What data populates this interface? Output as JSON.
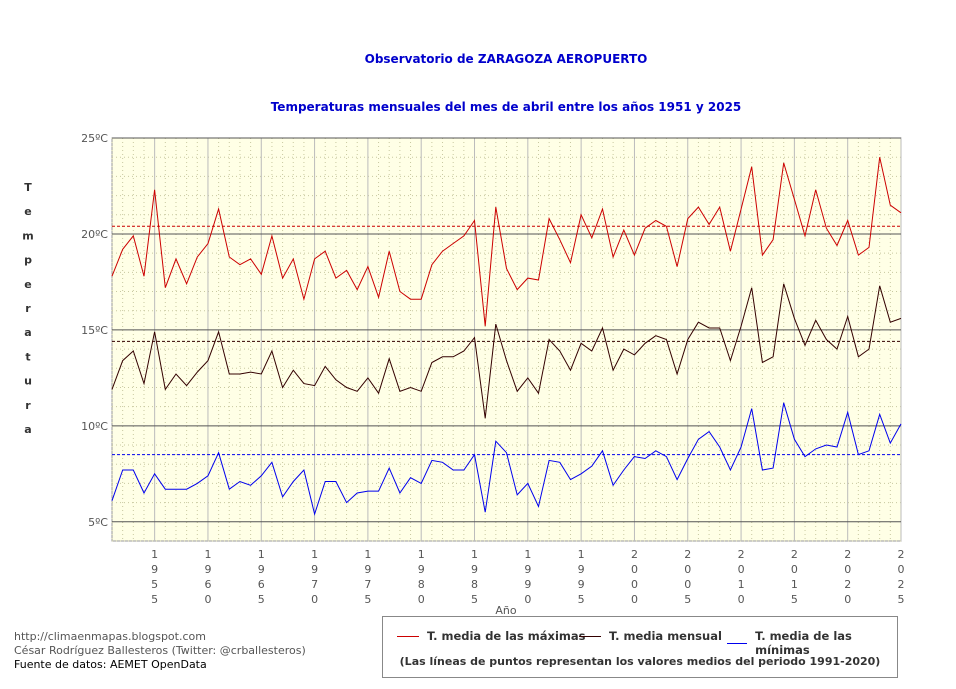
{
  "title": "Observatorio de ZARAGOZA AEROPUERTO",
  "subtitle": "Temperaturas mensuales del mes de abril entre los años 1951 y 2025",
  "credits": {
    "blog": "http://climaenmapas.blogspot.com",
    "author": "César Rodríguez Ballesteros (Twitter: @crballesteros)",
    "source": "Fuente de datos: AEMET OpenData"
  },
  "legend": {
    "note": "(Las líneas de puntos representan los valores medios del periodo 1991-2020)"
  },
  "colors": {
    "background": "#ffffe6",
    "max": "#cc0000",
    "mean": "#330000",
    "min": "#0000ee",
    "title": "#0000cc"
  },
  "chart_data": {
    "type": "line",
    "xlabel": "Año",
    "ylabel": "Temperatura",
    "ylim": [
      4,
      25
    ],
    "y_ticks": [
      5,
      10,
      15,
      20,
      25
    ],
    "y_tick_labels": [
      "5ºC",
      "10ºC",
      "15ºC",
      "20ºC",
      "25ºC"
    ],
    "x_ticks": [
      1955,
      1960,
      1965,
      1970,
      1975,
      1980,
      1985,
      1990,
      1995,
      2000,
      2005,
      2010,
      2015,
      2020,
      2025
    ],
    "x_tick_labels": [
      "1955",
      "1960",
      "1965",
      "1970",
      "1975",
      "1980",
      "1985",
      "1990",
      "1995",
      "2000",
      "2005",
      "2010",
      "2015",
      "2020",
      "2025"
    ],
    "x": [
      1951,
      1952,
      1953,
      1954,
      1955,
      1956,
      1957,
      1958,
      1959,
      1960,
      1961,
      1962,
      1963,
      1964,
      1965,
      1966,
      1967,
      1968,
      1969,
      1970,
      1971,
      1972,
      1973,
      1974,
      1975,
      1976,
      1977,
      1978,
      1979,
      1980,
      1981,
      1982,
      1983,
      1984,
      1985,
      1986,
      1987,
      1988,
      1989,
      1990,
      1991,
      1992,
      1993,
      1994,
      1995,
      1996,
      1997,
      1998,
      1999,
      2000,
      2001,
      2002,
      2003,
      2004,
      2005,
      2006,
      2007,
      2008,
      2009,
      2010,
      2011,
      2012,
      2013,
      2014,
      2015,
      2016,
      2017,
      2018,
      2019,
      2020,
      2021,
      2022,
      2023,
      2024,
      2025
    ],
    "grid": true,
    "series": [
      {
        "name": "T. media de las máximas",
        "color": "#cc0000",
        "reference_1991_2020": 20.4,
        "values": [
          17.8,
          19.2,
          19.9,
          17.8,
          22.3,
          17.2,
          18.7,
          17.4,
          18.8,
          19.5,
          21.3,
          18.8,
          18.4,
          18.7,
          17.9,
          19.9,
          17.7,
          18.7,
          16.6,
          18.7,
          19.1,
          17.7,
          18.1,
          17.1,
          18.3,
          16.7,
          19.1,
          17.0,
          16.6,
          16.6,
          18.4,
          19.1,
          19.5,
          19.9,
          20.7,
          15.2,
          21.4,
          18.2,
          17.1,
          17.7,
          17.6,
          20.8,
          19.7,
          18.5,
          21.0,
          19.8,
          21.3,
          18.8,
          20.2,
          18.9,
          20.3,
          20.7,
          20.4,
          18.3,
          20.8,
          21.4,
          20.5,
          21.4,
          19.1,
          21.3,
          23.5,
          18.9,
          19.7,
          23.7,
          21.8,
          19.9,
          22.3,
          20.3,
          19.4,
          20.7,
          18.9,
          19.3,
          24.0,
          21.5,
          21.1
        ]
      },
      {
        "name": "T. media mensual",
        "color": "#330000",
        "reference_1991_2020": 14.4,
        "values": [
          11.9,
          13.4,
          13.9,
          12.2,
          14.9,
          11.9,
          12.7,
          12.1,
          12.8,
          13.4,
          14.9,
          12.7,
          12.7,
          12.8,
          12.7,
          13.9,
          12.0,
          12.9,
          12.2,
          12.1,
          13.1,
          12.4,
          12.0,
          11.8,
          12.5,
          11.7,
          13.5,
          11.8,
          12.0,
          11.8,
          13.3,
          13.6,
          13.6,
          13.9,
          14.6,
          10.4,
          15.3,
          13.4,
          11.8,
          12.5,
          11.7,
          14.5,
          13.9,
          12.9,
          14.3,
          13.9,
          15.1,
          12.9,
          14.0,
          13.7,
          14.3,
          14.7,
          14.5,
          12.7,
          14.5,
          15.4,
          15.1,
          15.1,
          13.4,
          15.2,
          17.2,
          13.3,
          13.6,
          17.4,
          15.6,
          14.2,
          15.5,
          14.5,
          14.0,
          15.7,
          13.6,
          14.0,
          17.3,
          15.4,
          15.6
        ]
      },
      {
        "name": "T. media de las mínimas",
        "color": "#0000ee",
        "reference_1991_2020": 8.5,
        "values": [
          6.1,
          7.7,
          7.7,
          6.5,
          7.5,
          6.7,
          6.7,
          6.7,
          7.0,
          7.4,
          8.6,
          6.7,
          7.1,
          6.9,
          7.4,
          8.1,
          6.3,
          7.1,
          7.7,
          5.4,
          7.1,
          7.1,
          6.0,
          6.5,
          6.6,
          6.6,
          7.8,
          6.5,
          7.3,
          7.0,
          8.2,
          8.1,
          7.7,
          7.7,
          8.5,
          5.5,
          9.2,
          8.6,
          6.4,
          7.0,
          5.8,
          8.2,
          8.1,
          7.2,
          7.5,
          7.9,
          8.7,
          6.9,
          7.7,
          8.4,
          8.3,
          8.7,
          8.4,
          7.2,
          8.3,
          9.3,
          9.7,
          8.9,
          7.7,
          8.9,
          10.9,
          7.7,
          7.8,
          11.2,
          9.3,
          8.4,
          8.8,
          9.0,
          8.9,
          10.7,
          8.5,
          8.7,
          10.6,
          9.1,
          10.1
        ]
      }
    ]
  }
}
